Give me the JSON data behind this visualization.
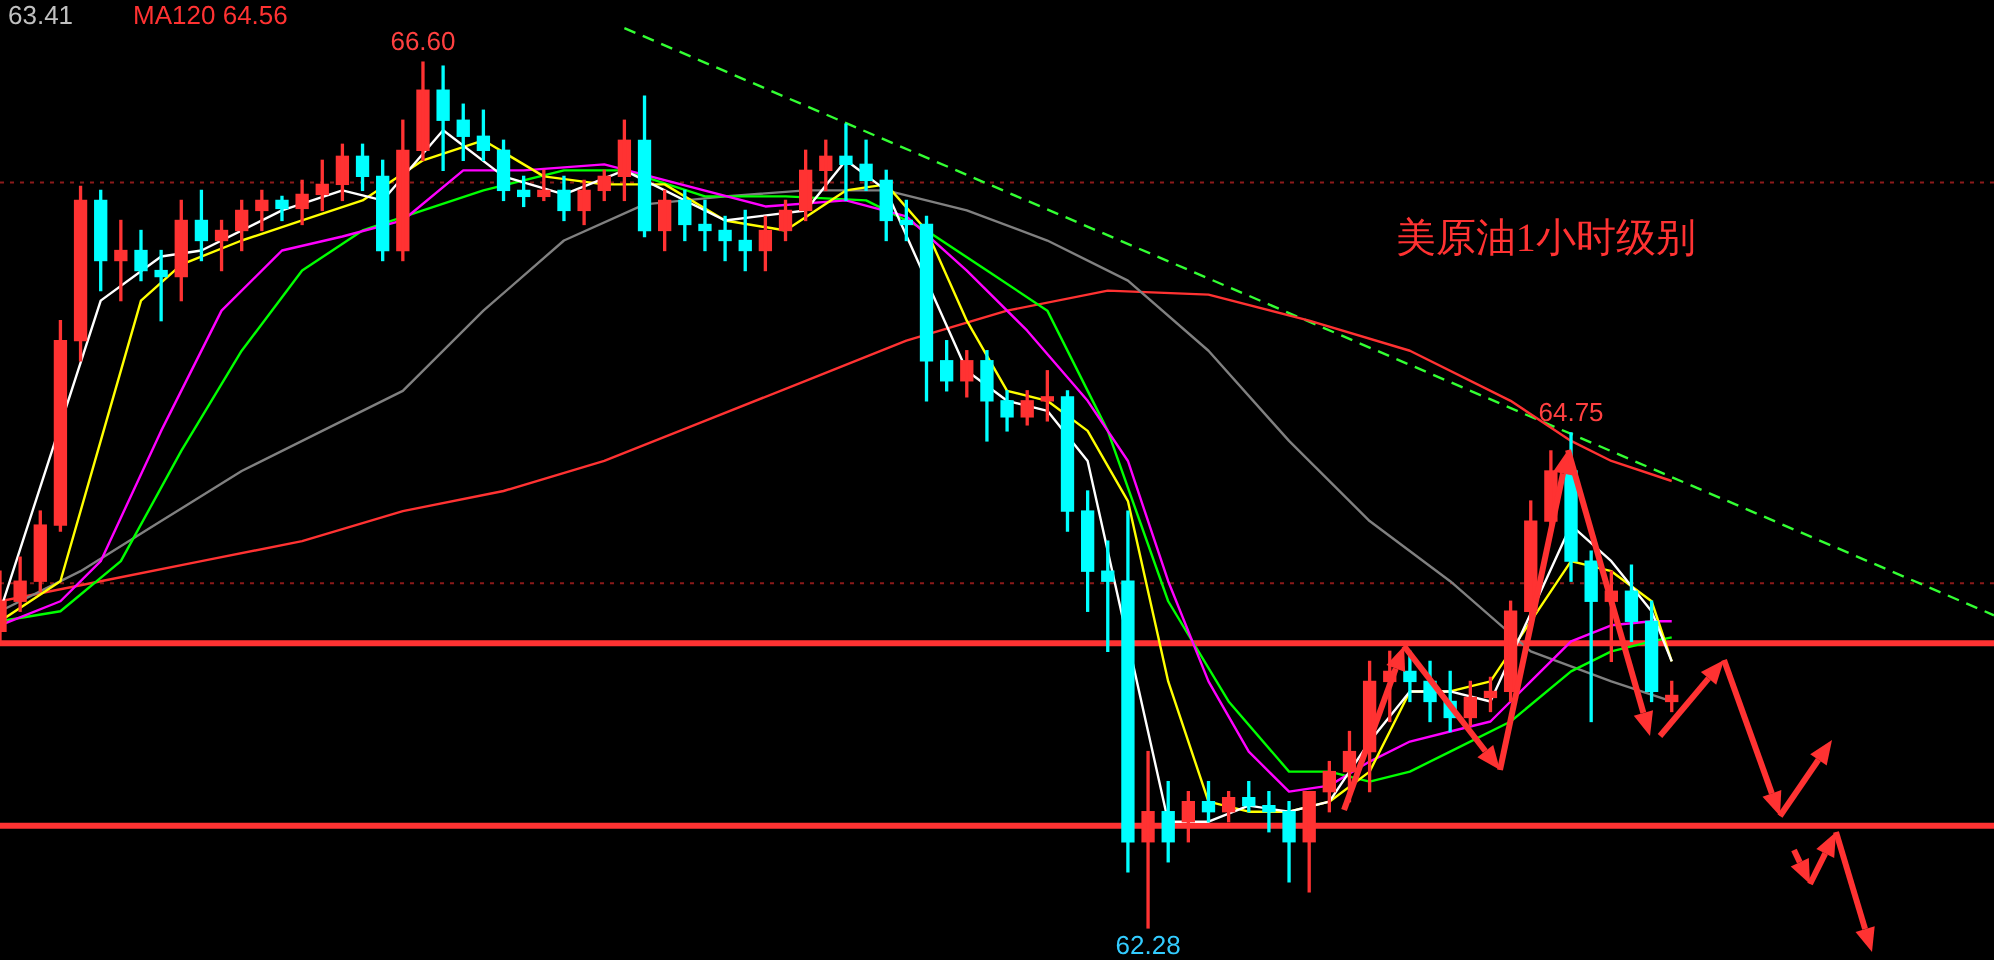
{
  "chart_data": {
    "type": "candlestick",
    "title": "美原油1小时级别",
    "categories": [
      null,
      null,
      null,
      null,
      null,
      null,
      null,
      null,
      null,
      null,
      null,
      null,
      null,
      null,
      null,
      null,
      null,
      null,
      null,
      null,
      null,
      null,
      null,
      null,
      null,
      null,
      null,
      null,
      null,
      null,
      null,
      null,
      null,
      null,
      null,
      null,
      null,
      null,
      null,
      null,
      null,
      null,
      null,
      null,
      null,
      null,
      null,
      null,
      null,
      null,
      null,
      null,
      null,
      null,
      null,
      null,
      null,
      null,
      null,
      null,
      null,
      null,
      null,
      null,
      null,
      null,
      null,
      null,
      null,
      null,
      null,
      null,
      null,
      null,
      null,
      null,
      null,
      null,
      null,
      null,
      null,
      null,
      null,
      null,
      null,
      null,
      null,
      null,
      null,
      null,
      null,
      null,
      null,
      null,
      null,
      null,
      null,
      null,
      null,
      null
    ],
    "ohlc": [
      [
        63.76,
        64.06,
        63.69,
        63.91
      ],
      [
        63.91,
        64.13,
        63.86,
        64.01
      ],
      [
        64.01,
        64.36,
        63.96,
        64.29
      ],
      [
        64.29,
        65.31,
        64.26,
        65.21
      ],
      [
        65.21,
        65.98,
        65.11,
        65.91
      ],
      [
        65.91,
        65.96,
        65.46,
        65.61
      ],
      [
        65.61,
        65.81,
        65.41,
        65.66
      ],
      [
        65.66,
        65.76,
        65.51,
        65.56
      ],
      [
        65.56,
        65.66,
        65.31,
        65.53
      ],
      [
        65.53,
        65.91,
        65.41,
        65.81
      ],
      [
        65.81,
        65.96,
        65.61,
        65.71
      ],
      [
        65.71,
        65.81,
        65.56,
        65.76
      ],
      [
        65.76,
        65.91,
        65.66,
        65.86
      ],
      [
        65.86,
        65.96,
        65.76,
        65.91
      ],
      [
        65.91,
        65.93,
        65.81,
        65.87
      ],
      [
        65.87,
        66.01,
        65.79,
        65.94
      ],
      [
        65.94,
        66.11,
        65.86,
        65.99
      ],
      [
        65.99,
        66.19,
        65.91,
        66.13
      ],
      [
        66.13,
        66.19,
        65.96,
        66.03
      ],
      [
        66.03,
        66.11,
        65.61,
        65.66
      ],
      [
        65.66,
        66.31,
        65.61,
        66.16
      ],
      [
        66.16,
        66.6,
        66.11,
        66.46
      ],
      [
        66.46,
        66.58,
        66.06,
        66.31
      ],
      [
        66.31,
        66.39,
        66.11,
        66.23
      ],
      [
        66.23,
        66.36,
        66.11,
        66.16
      ],
      [
        66.16,
        66.21,
        65.91,
        65.96
      ],
      [
        65.96,
        66.03,
        65.88,
        65.93
      ],
      [
        65.93,
        66.06,
        65.91,
        65.96
      ],
      [
        65.96,
        66.03,
        65.81,
        65.86
      ],
      [
        65.86,
        66.01,
        65.79,
        65.96
      ],
      [
        65.96,
        66.06,
        65.91,
        66.03
      ],
      [
        66.03,
        66.31,
        65.91,
        66.21
      ],
      [
        66.21,
        66.43,
        65.73,
        65.76
      ],
      [
        65.76,
        65.96,
        65.66,
        65.91
      ],
      [
        65.91,
        65.96,
        65.71,
        65.79
      ],
      [
        65.79,
        65.91,
        65.66,
        65.76
      ],
      [
        65.76,
        65.83,
        65.61,
        65.71
      ],
      [
        65.71,
        65.86,
        65.56,
        65.66
      ],
      [
        65.66,
        65.83,
        65.56,
        65.76
      ],
      [
        65.76,
        65.91,
        65.71,
        65.86
      ],
      [
        65.86,
        66.16,
        65.81,
        66.06
      ],
      [
        66.06,
        66.21,
        65.96,
        66.13
      ],
      [
        66.13,
        66.29,
        65.91,
        66.09
      ],
      [
        66.09,
        66.21,
        65.96,
        66.01
      ],
      [
        66.01,
        66.06,
        65.71,
        65.81
      ],
      [
        65.81,
        65.91,
        65.71,
        65.79
      ],
      [
        65.79,
        65.83,
        64.91,
        65.11
      ],
      [
        65.11,
        65.21,
        64.96,
        65.01
      ],
      [
        65.01,
        65.16,
        64.93,
        65.11
      ],
      [
        65.11,
        65.16,
        64.71,
        64.91
      ],
      [
        64.91,
        64.96,
        64.76,
        64.83
      ],
      [
        64.83,
        64.96,
        64.79,
        64.91
      ],
      [
        64.91,
        65.06,
        64.81,
        64.93
      ],
      [
        64.93,
        64.96,
        64.26,
        64.36
      ],
      [
        64.36,
        64.46,
        63.86,
        64.06
      ],
      [
        64.06,
        64.21,
        63.66,
        64.01
      ],
      [
        64.01,
        64.36,
        62.56,
        62.71
      ],
      [
        62.71,
        63.16,
        62.28,
        62.86
      ],
      [
        62.86,
        63.01,
        62.61,
        62.71
      ],
      [
        62.81,
        62.96,
        62.71,
        62.91
      ],
      [
        62.91,
        63.01,
        62.81,
        62.86
      ],
      [
        62.86,
        62.96,
        62.81,
        62.93
      ],
      [
        62.93,
        63.01,
        62.86,
        62.89
      ],
      [
        62.89,
        62.96,
        62.76,
        62.86
      ],
      [
        62.86,
        62.91,
        62.51,
        62.71
      ],
      [
        62.71,
        62.96,
        62.46,
        62.96
      ],
      [
        62.96,
        63.11,
        62.86,
        63.06
      ],
      [
        63.06,
        63.26,
        62.91,
        63.16
      ],
      [
        63.16,
        63.61,
        62.96,
        63.51
      ],
      [
        63.51,
        63.66,
        63.31,
        63.56
      ],
      [
        63.56,
        63.66,
        63.41,
        63.51
      ],
      [
        63.51,
        63.61,
        63.31,
        63.41
      ],
      [
        63.41,
        63.56,
        63.26,
        63.33
      ],
      [
        63.33,
        63.51,
        63.29,
        63.43
      ],
      [
        63.43,
        63.53,
        63.36,
        63.46
      ],
      [
        63.46,
        63.91,
        63.41,
        63.86
      ],
      [
        63.86,
        64.41,
        63.81,
        64.31
      ],
      [
        64.31,
        64.66,
        64.26,
        64.56
      ],
      [
        64.56,
        64.75,
        64.01,
        64.11
      ],
      [
        64.11,
        64.16,
        63.31,
        63.91
      ],
      [
        63.91,
        64.06,
        63.61,
        63.96
      ],
      [
        63.96,
        64.09,
        63.71,
        63.81
      ],
      [
        63.81,
        63.91,
        63.41,
        63.46
      ],
      [
        63.41,
        63.51,
        63.36,
        63.44
      ],
      null,
      null,
      null,
      null,
      null,
      null,
      null,
      null,
      null,
      null,
      null,
      null,
      null,
      null,
      null,
      null
    ],
    "colors": [
      "#ff3232",
      "#ff3232",
      "#ff3232",
      "#ff3232",
      "#ff3232",
      "#00ffff",
      "#ff3232",
      "#00ffff",
      "#00ffff",
      "#ff3232",
      "#00ffff",
      "#ff3232",
      "#ff3232",
      "#ff3232",
      "#00ffff",
      "#ff3232",
      "#ff3232",
      "#ff3232",
      "#00ffff",
      "#00ffff",
      "#ff3232",
      "#ff3232",
      "#00ffff",
      "#00ffff",
      "#00ffff",
      "#00ffff",
      "#00ffff",
      "#ff3232",
      "#00ffff",
      "#ff3232",
      "#ff3232",
      "#ff3232",
      "#00ffff",
      "#ff3232",
      "#00ffff",
      "#00ffff",
      "#00ffff",
      "#00ffff",
      "#ff3232",
      "#ff3232",
      "#ff3232",
      "#ff3232",
      "#00ffff",
      "#00ffff",
      "#00ffff",
      "#00ffff",
      "#00ffff",
      "#00ffff",
      "#ff3232",
      "#00ffff",
      "#00ffff",
      "#ff3232",
      "#ff3232",
      "#00ffff",
      "#00ffff",
      "#00ffff",
      "#00ffff",
      "#ff3232",
      "#00ffff",
      "#ff3232",
      "#00ffff",
      "#ff3232",
      "#00ffff",
      "#00ffff",
      "#00ffff",
      "#ff3232",
      "#ff3232",
      "#ff3232",
      "#ff3232",
      "#ff3232",
      "#00ffff",
      "#00ffff",
      "#00ffff",
      "#ff3232",
      "#ff3232",
      "#ff3232",
      "#ff3232",
      "#ff3232",
      "#00ffff",
      "#00ffff",
      "#ff3232",
      "#00ffff",
      "#00ffff",
      "#ff3232",
      null,
      null,
      null,
      null,
      null,
      null,
      null,
      null,
      null,
      null,
      null,
      null,
      null,
      null,
      null,
      null
    ],
    "series": [
      {
        "type": "line",
        "color": "#ffffff",
        "values": [
          63.86,
          null,
          null,
          null,
          null,
          65.41,
          null,
          null,
          65.63,
          null,
          65.66,
          null,
          null,
          null,
          65.86,
          null,
          null,
          65.96,
          null,
          65.91,
          null,
          null,
          66.26,
          null,
          null,
          66.03,
          null,
          null,
          65.94,
          null,
          null,
          66.06,
          null,
          65.96,
          null,
          null,
          65.81,
          null,
          null,
          null,
          65.86,
          null,
          66.11,
          null,
          65.96,
          null,
          null,
          null,
          65.06,
          null,
          64.91,
          null,
          64.86,
          null,
          64.61,
          null,
          null,
          null,
          62.81,
          null,
          62.81,
          null,
          62.89,
          null,
          62.86,
          null,
          62.91,
          null,
          63.21,
          null,
          63.46,
          null,
          63.46,
          null,
          63.41,
          null,
          null,
          null,
          64.29,
          null,
          64.11,
          null,
          63.86,
          63.61,
          null,
          null,
          null,
          null,
          null,
          null,
          null,
          null,
          null,
          null,
          null,
          null,
          null,
          null,
          null,
          null
        ]
      },
      {
        "type": "line",
        "color": "#ffff00",
        "values": [
          63.81,
          null,
          null,
          64.01,
          null,
          64.71,
          null,
          65.41,
          null,
          65.59,
          null,
          null,
          65.71,
          null,
          null,
          65.81,
          null,
          null,
          65.91,
          null,
          null,
          66.11,
          null,
          null,
          66.21,
          null,
          null,
          66.03,
          null,
          null,
          65.99,
          null,
          null,
          65.99,
          null,
          null,
          65.81,
          null,
          null,
          65.76,
          null,
          null,
          65.96,
          null,
          65.99,
          null,
          65.76,
          null,
          65.31,
          null,
          64.96,
          null,
          64.91,
          null,
          64.76,
          null,
          64.41,
          null,
          63.51,
          null,
          62.91,
          null,
          62.86,
          null,
          62.86,
          null,
          62.91,
          null,
          63.06,
          null,
          63.46,
          null,
          63.46,
          null,
          63.51,
          null,
          63.81,
          null,
          64.11,
          null,
          64.06,
          null,
          63.91,
          63.61,
          null,
          null,
          null,
          null,
          null,
          null,
          null,
          null,
          null,
          null,
          null,
          null,
          null,
          null,
          null,
          null
        ]
      },
      {
        "type": "line",
        "color": "#ff00ff",
        "values": [
          63.79,
          null,
          null,
          63.91,
          null,
          64.11,
          null,
          null,
          64.76,
          null,
          null,
          65.36,
          null,
          null,
          65.66,
          null,
          null,
          65.73,
          null,
          null,
          65.81,
          null,
          null,
          66.06,
          null,
          null,
          66.06,
          null,
          null,
          null,
          66.09,
          null,
          null,
          null,
          null,
          null,
          null,
          null,
          65.88,
          null,
          null,
          null,
          65.91,
          null,
          null,
          65.83,
          null,
          null,
          65.56,
          null,
          null,
          65.26,
          null,
          null,
          64.91,
          null,
          64.61,
          null,
          64.01,
          null,
          63.51,
          null,
          63.16,
          null,
          62.96,
          null,
          62.99,
          null,
          63.11,
          null,
          63.21,
          null,
          63.26,
          null,
          63.31,
          null,
          63.51,
          null,
          63.71,
          null,
          63.79,
          null,
          63.81,
          63.81,
          null,
          null,
          null,
          null,
          null,
          null,
          null,
          null,
          null,
          null,
          null,
          null,
          null,
          null,
          null,
          null
        ]
      },
      {
        "type": "line",
        "color": "#00ff00",
        "values": [
          63.81,
          null,
          null,
          63.86,
          null,
          null,
          64.11,
          null,
          null,
          64.66,
          null,
          null,
          65.16,
          null,
          null,
          65.56,
          null,
          null,
          65.76,
          null,
          null,
          65.86,
          null,
          null,
          65.96,
          null,
          null,
          null,
          66.06,
          null,
          null,
          66.06,
          null,
          null,
          null,
          65.93,
          null,
          null,
          null,
          65.93,
          null,
          null,
          null,
          65.91,
          null,
          null,
          65.76,
          null,
          null,
          65.56,
          null,
          null,
          65.36,
          null,
          null,
          64.76,
          null,
          null,
          63.91,
          null,
          null,
          63.41,
          null,
          null,
          63.06,
          null,
          63.06,
          null,
          63.01,
          null,
          63.06,
          null,
          63.16,
          null,
          null,
          63.31,
          null,
          null,
          63.56,
          null,
          63.66,
          null,
          63.71,
          63.73,
          null,
          null,
          null,
          null,
          null,
          null,
          null,
          null,
          null,
          null,
          null,
          null,
          null,
          null,
          null,
          null
        ]
      },
      {
        "type": "line",
        "color": "#808080",
        "values": [
          63.86,
          null,
          null,
          null,
          64.06,
          null,
          null,
          null,
          64.31,
          null,
          null,
          null,
          64.56,
          null,
          null,
          null,
          64.76,
          null,
          null,
          null,
          64.96,
          null,
          null,
          null,
          65.36,
          null,
          null,
          null,
          65.71,
          null,
          null,
          null,
          65.89,
          null,
          null,
          null,
          65.93,
          null,
          null,
          null,
          65.96,
          null,
          null,
          null,
          65.96,
          null,
          null,
          null,
          65.86,
          null,
          null,
          null,
          65.71,
          null,
          null,
          null,
          65.51,
          null,
          null,
          null,
          65.16,
          null,
          null,
          null,
          64.71,
          null,
          null,
          null,
          64.31,
          null,
          null,
          null,
          64.01,
          null,
          null,
          null,
          63.66,
          null,
          null,
          null,
          63.51,
          null,
          null,
          63.41,
          null,
          null,
          null,
          null,
          null,
          null,
          null,
          null,
          null,
          null,
          null,
          null,
          null,
          null,
          null,
          null
        ]
      },
      {
        "type": "line",
        "color": "#ff3232",
        "values": [
          63.91,
          null,
          null,
          null,
          null,
          64.01,
          null,
          null,
          null,
          null,
          64.11,
          null,
          null,
          null,
          null,
          64.21,
          null,
          null,
          null,
          null,
          64.36,
          null,
          null,
          null,
          null,
          64.46,
          null,
          null,
          null,
          null,
          64.61,
          null,
          null,
          null,
          null,
          64.81,
          null,
          null,
          null,
          null,
          65.01,
          null,
          null,
          null,
          null,
          65.21,
          null,
          null,
          null,
          null,
          65.36,
          null,
          null,
          null,
          null,
          65.46,
          null,
          null,
          null,
          null,
          65.44,
          null,
          null,
          null,
          null,
          65.31,
          null,
          null,
          null,
          null,
          65.16,
          null,
          null,
          null,
          null,
          64.91,
          null,
          null,
          64.71,
          null,
          64.61,
          null,
          null,
          64.51,
          null,
          null,
          null,
          null,
          null,
          null,
          null,
          null,
          null,
          null,
          null,
          null,
          null,
          null,
          null,
          null
        ]
      },
      {
        "type": "line",
        "color": "#33ff33",
        "line_style": "dashed",
        "values": [
          null,
          null,
          null,
          null,
          null,
          null,
          null,
          null,
          null,
          null,
          null,
          null,
          null,
          null,
          null,
          null,
          null,
          null,
          null,
          null,
          null,
          null,
          null,
          null,
          null,
          null,
          null,
          null,
          null,
          null,
          null,
          66.77,
          null,
          null,
          null,
          null,
          null,
          null,
          null,
          null,
          null,
          null,
          null,
          null,
          null,
          null,
          null,
          null,
          null,
          null,
          null,
          null,
          null,
          null,
          null,
          null,
          null,
          null,
          null,
          null,
          null,
          null,
          null,
          null,
          null,
          null,
          null,
          null,
          null,
          null,
          null,
          null,
          null,
          null,
          null,
          null,
          null,
          null,
          null,
          null,
          null,
          null,
          null,
          null,
          null,
          null,
          null,
          null,
          null,
          null,
          null,
          null,
          null,
          null,
          null,
          null,
          null,
          null,
          null,
          63.84
        ]
      }
    ],
    "ylim": [
      62.12,
      66.91
    ],
    "ref_lines": [
      {
        "axis": "y",
        "value": 66,
        "color": "#8b1a1a",
        "line_style": "dotted"
      },
      {
        "axis": "y",
        "value": 64,
        "color": "#8b1a1a",
        "line_style": "dotted"
      },
      {
        "axis": "y",
        "value": 63.7,
        "color": "#ff3232",
        "line_style": "solid"
      },
      {
        "axis": "y",
        "value": 62.79,
        "color": "#ff3232",
        "line_style": "solid"
      }
    ],
    "annotations": [
      "63.41",
      "MA120 64.56",
      {
        "text": "66.60",
        "y": 66.6
      },
      {
        "text": "64.75",
        "y": 64.75
      },
      {
        "text": "62.28",
        "y": 62.28
      }
    ],
    "tick_labels": false,
    "legend": false,
    "grid": false
  }
}
